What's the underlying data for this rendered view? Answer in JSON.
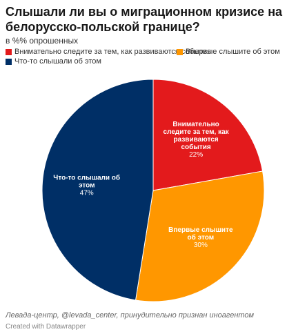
{
  "title": "Слышали ли вы о миграционном кризисе на белорусско-польской границе?",
  "subtitle": "в %% опрошенных",
  "chart_data": {
    "type": "pie",
    "title": "Слышали ли вы о миграционном кризисе на белорусско-польской границе?",
    "subtitle": "в %% опрошенных",
    "unit": "%",
    "legend_position": "top",
    "slices": [
      {
        "label": "Внимательно следите за тем, как развиваются события",
        "label_lines": [
          "Внимательно",
          "следите за тем, как",
          "развиваются",
          "события"
        ],
        "value": 22,
        "display": "22%",
        "color": "#e31a1c"
      },
      {
        "label": "Впервые слышите об этом",
        "label_lines": [
          "Впервые слышите",
          "об этом"
        ],
        "value": 30,
        "display": "30%",
        "color": "#ff9700"
      },
      {
        "label": "Что-то слышали об этом",
        "label_lines": [
          "Что-то слышали об",
          "этом"
        ],
        "value": 47,
        "display": "47%",
        "color": "#002f66"
      }
    ]
  },
  "footer": {
    "source": "Левада-центр, @levada_center, принудительно признан иноагентом",
    "created": "Created with Datawrapper"
  }
}
